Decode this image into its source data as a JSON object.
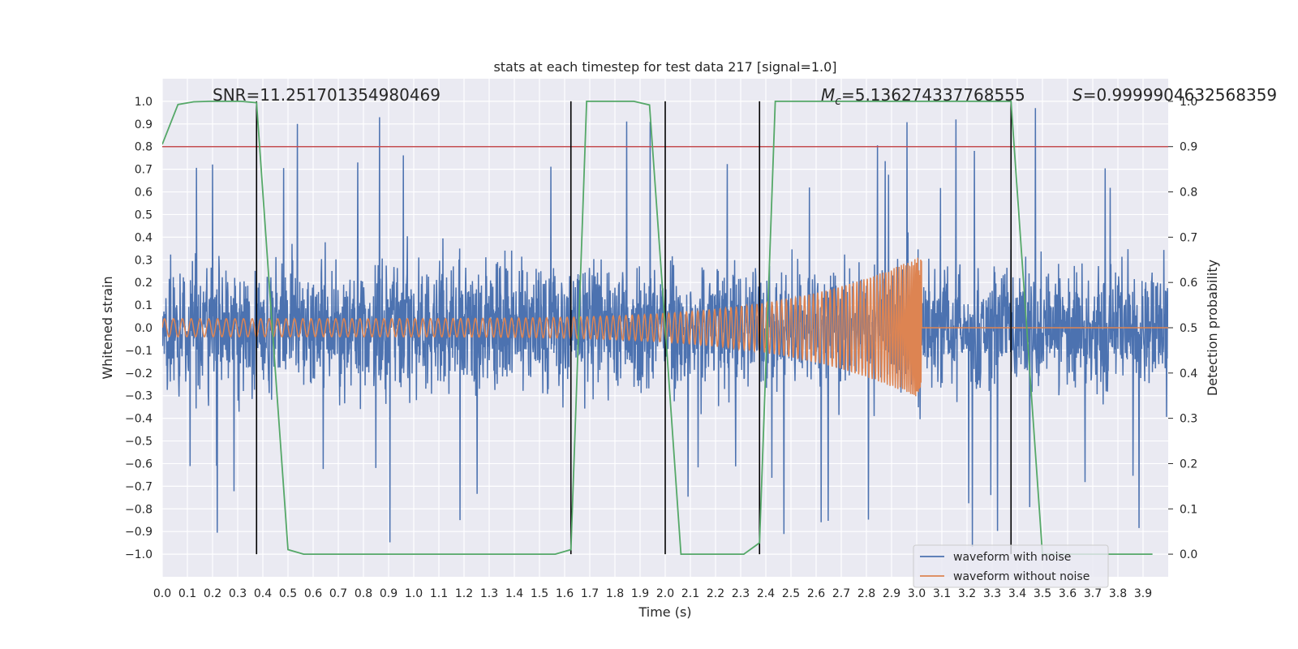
{
  "chart_data": {
    "type": "line",
    "title": "stats at each timestep for test data 217 [signal=1.0]",
    "xlabel": "Time (s)",
    "ylabel": "Whitened strain",
    "y2label": "Detection probability",
    "xlim": [
      0.0,
      4.0
    ],
    "ylim": [
      -1.1,
      1.1
    ],
    "y2lim": [
      -0.05,
      1.05
    ],
    "xticks": [
      "0.0",
      "0.1",
      "0.2",
      "0.3",
      "0.4",
      "0.5",
      "0.6",
      "0.7",
      "0.8",
      "0.9",
      "1.0",
      "1.1",
      "1.2",
      "1.3",
      "1.4",
      "1.5",
      "1.6",
      "1.7",
      "1.8",
      "1.9",
      "2.0",
      "2.1",
      "2.2",
      "2.3",
      "2.4",
      "2.5",
      "2.6",
      "2.7",
      "2.8",
      "2.9",
      "3.0",
      "3.1",
      "3.2",
      "3.3",
      "3.4",
      "3.5",
      "3.6",
      "3.7",
      "3.8",
      "3.9"
    ],
    "yticks": [
      "1.0",
      "0.9",
      "0.8",
      "0.7",
      "0.6",
      "0.5",
      "0.4",
      "0.3",
      "0.2",
      "0.1",
      "0.0",
      "−0.1",
      "−0.2",
      "−0.3",
      "−0.4",
      "−0.5",
      "−0.6",
      "−0.7",
      "−0.8",
      "−0.9",
      "−1.0"
    ],
    "y2ticks": [
      "1.0",
      "0.9",
      "0.8",
      "0.7",
      "0.6",
      "0.5",
      "0.4",
      "0.3",
      "0.2",
      "0.1",
      "0.0"
    ],
    "threshold": {
      "value": 0.9,
      "axis": "y2",
      "color": "#c44e52"
    },
    "vlines": [
      0.375,
      1.625,
      2.0,
      2.375,
      3.375
    ],
    "series": [
      {
        "name": "waveform with noise",
        "color": "#4c72b0",
        "description": "whitened noisy strain, approx. amplitude ±0.5 with spikes to ±1.0",
        "amplitude": 0.35,
        "peak_max": 1.0,
        "peak_min": -1.0
      },
      {
        "name": "waveform without noise",
        "color": "#dd8452",
        "description": "chirp signal, amplitude growing from ~0.04 to ~0.32, merger at ~3.02 s",
        "start_amplitude": 0.04,
        "peak_amplitude": 0.32,
        "merger_time": 3.02
      },
      {
        "name": "detection probability",
        "color": "#55a868",
        "axis": "y2",
        "x": [
          0.0,
          0.0625,
          0.125,
          0.1875,
          0.25,
          0.3125,
          0.375,
          0.4375,
          0.5,
          0.5625,
          0.625,
          0.6875,
          0.75,
          0.8125,
          0.875,
          0.9375,
          1.0,
          1.0625,
          1.125,
          1.1875,
          1.25,
          1.3125,
          1.375,
          1.4375,
          1.5,
          1.5625,
          1.625,
          1.6875,
          1.75,
          1.8125,
          1.875,
          1.9375,
          2.0,
          2.0625,
          2.125,
          2.1875,
          2.25,
          2.3125,
          2.375,
          2.4375,
          2.5,
          2.5625,
          2.625,
          2.6875,
          2.75,
          2.8125,
          2.875,
          2.9375,
          3.0,
          3.0625,
          3.125,
          3.1875,
          3.25,
          3.3125,
          3.375,
          3.4375,
          3.5,
          3.5625,
          3.625,
          3.6875,
          3.75,
          3.8125,
          3.875,
          3.9375
        ],
        "values": [
          0.905,
          0.993,
          0.999,
          1.0,
          1.0,
          1.0,
          0.997,
          0.5,
          0.01,
          0.0,
          0.0,
          0.0,
          0.0,
          0.0,
          0.0,
          0.0,
          0.0,
          0.0,
          0.0,
          0.0,
          0.0,
          0.0,
          0.0,
          0.0,
          0.0,
          0.0,
          0.01,
          1.0,
          1.0,
          1.0,
          1.0,
          0.992,
          0.5,
          0.0,
          0.0,
          0.0,
          0.0,
          0.0,
          0.025,
          1.0,
          1.0,
          1.0,
          1.0,
          1.0,
          1.0,
          1.0,
          1.0,
          1.0,
          1.0,
          1.0,
          1.0,
          1.0,
          1.0,
          1.0,
          1.0,
          0.5,
          0.0,
          0.0,
          0.0,
          0.0,
          0.0,
          0.0,
          0.0,
          0.0
        ]
      }
    ],
    "annotations": {
      "snr": "SNR=11.251701354980469",
      "mc_symbol": "M",
      "mc_sub": "c",
      "mc_value": "=5.136274337768555",
      "s_symbol": "S",
      "s_value": "=0.9999904632568359"
    },
    "legend": {
      "position": "lower-right",
      "entries": [
        "waveform with noise",
        "waveform without noise"
      ]
    },
    "colors": {
      "axes_bg": "#eaeaf2",
      "grid": "#ffffff",
      "vline": "#000000"
    }
  }
}
